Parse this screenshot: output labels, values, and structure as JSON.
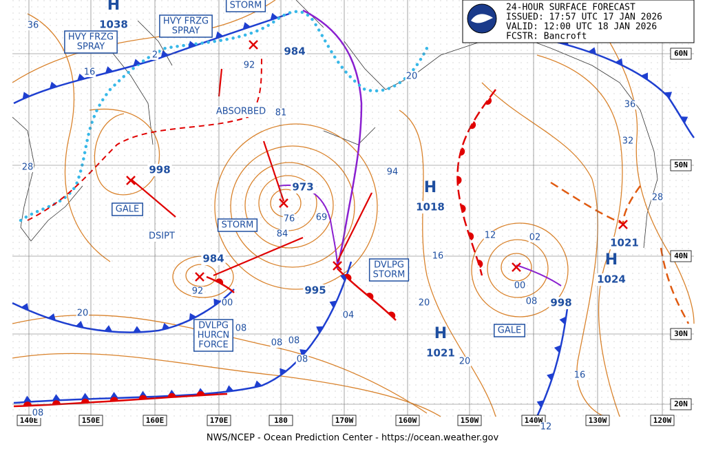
{
  "header": {
    "title": "24-HOUR SURFACE FORECAST",
    "issued": "ISSUED: 17:57 UTC 17 JAN 2026",
    "valid": "VALID:  12:00 UTC 18 JAN 2026",
    "forecaster": "FCSTR:  Bancroft"
  },
  "lat_labels": [
    "60N",
    "50N",
    "40N",
    "30N",
    "20N"
  ],
  "lon_labels": [
    "140E",
    "150E",
    "160E",
    "170E",
    "180",
    "170W",
    "160W",
    "150W",
    "140W",
    "130W",
    "120W"
  ],
  "centers": [
    {
      "symbol": "H",
      "value": "1038"
    },
    {
      "symbol": "H",
      "value": "1018"
    },
    {
      "symbol": "H",
      "value": "1021"
    },
    {
      "symbol": "H",
      "value": "1024"
    }
  ],
  "lows": [
    "984",
    "998",
    "973",
    "984",
    "995",
    "998",
    "1021"
  ],
  "isobar_labels": [
    "36",
    "16",
    "2",
    "92",
    "81",
    "76",
    "69",
    "84",
    "94",
    "12",
    "02",
    "16",
    "92",
    "00",
    "20",
    "20",
    "00",
    "08",
    "08",
    "08",
    "08",
    "08",
    "20",
    "16",
    "36",
    "32",
    "28",
    "28",
    "20",
    "08",
    "12",
    "04"
  ],
  "boxed_labels": [
    {
      "lines": [
        "HVY FRZG",
        "SPRAY"
      ]
    },
    {
      "lines": [
        "HVY FRZG",
        "SPRAY"
      ]
    },
    {
      "lines": [
        "STORM"
      ]
    },
    {
      "lines": [
        "GALE"
      ]
    },
    {
      "lines": [
        "STORM"
      ]
    },
    {
      "lines": [
        "DVLPG",
        "STORM"
      ]
    },
    {
      "lines": [
        "GALE"
      ]
    },
    {
      "lines": [
        "DVLPG",
        "HURCN",
        "FORCE"
      ]
    }
  ],
  "plain_labels": [
    "ABSORBED",
    "DSIPT"
  ],
  "footer": "NWS/NCEP - Ocean Prediction Center - https://ocean.weather.gov"
}
